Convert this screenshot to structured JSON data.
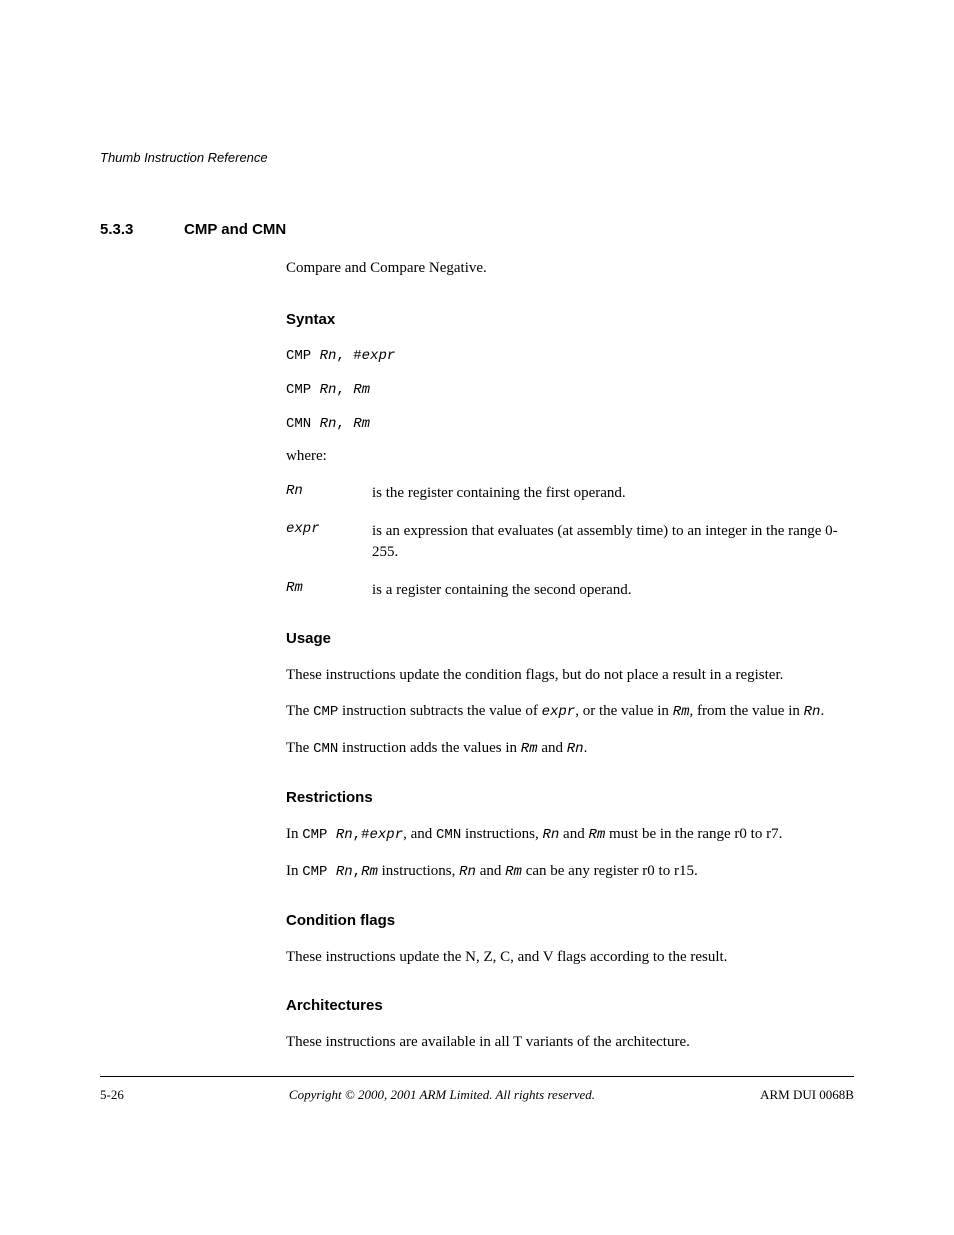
{
  "header": "Thumb Instruction Reference",
  "section": {
    "number": "5.3.3",
    "title": "CMP and CMN"
  },
  "intro": "Compare and Compare Negative.",
  "syntax": {
    "heading": "Syntax",
    "lines": [
      {
        "op": "CMP ",
        "args_html": "<span class=\"mono-italic\">Rn</span><span class=\"mono\">, #</span><span class=\"mono-italic\">expr</span>"
      },
      {
        "op": "CMP ",
        "args_html": "<span class=\"mono-italic\">Rn</span><span class=\"mono\">, </span><span class=\"mono-italic\">Rm</span>"
      },
      {
        "op": "CMN ",
        "args_html": "<span class=\"mono-italic\">Rn</span><span class=\"mono\">, </span><span class=\"mono-italic\">Rm</span>"
      }
    ],
    "where": "where:",
    "defs": [
      {
        "term": "Rn",
        "desc": "is the register containing the first operand."
      },
      {
        "term": "expr",
        "desc": "is an expression that evaluates (at assembly time) to an integer in the range 0-255."
      },
      {
        "term": "Rm",
        "desc": "is a register containing the second operand."
      }
    ]
  },
  "usage": {
    "heading": "Usage",
    "p1": "These instructions update the condition flags, but do not place a result in a register.",
    "p2_pre": "The ",
    "p2_cmp": "CMP",
    "p2_mid1": " instruction subtracts the value of ",
    "p2_expr": "expr",
    "p2_mid2": ", or the value in ",
    "p2_rm": "Rm",
    "p2_mid3": ", from the value in ",
    "p2_rn": "Rn",
    "p2_end": ".",
    "p3_pre": "The ",
    "p3_cmn": "CMN",
    "p3_mid1": " instruction adds the values in ",
    "p3_rm": "Rm",
    "p3_mid2": " and ",
    "p3_rn": "Rn",
    "p3_end": "."
  },
  "restrictions": {
    "heading": "Restrictions",
    "p1_pre": "In ",
    "p1_cmp": "CMP ",
    "p1_rn": "Rn",
    "p1_comma": ",",
    "p1_hash": "#",
    "p1_expr": "expr",
    "p1_mid1": ", and ",
    "p1_cmn": "CMN",
    "p1_mid2": " instructions, ",
    "p1_rn2": "Rn",
    "p1_mid3": " and ",
    "p1_rm": "Rm",
    "p1_end": " must be in the range r0 to r7.",
    "p2_pre": "In ",
    "p2_cmp": "CMP ",
    "p2_rn": "Rn",
    "p2_comma": ",",
    "p2_rm": "Rm",
    "p2_mid1": " instructions, ",
    "p2_rn2": "Rn",
    "p2_mid2": " and ",
    "p2_rm2": "Rm",
    "p2_end": " can be any register r0 to r15."
  },
  "condflags": {
    "heading": "Condition flags",
    "p1": "These instructions update the N, Z, C, and V flags according to the result."
  },
  "arch": {
    "heading": "Architectures",
    "p1": "These instructions are available in all T variants of the architecture."
  },
  "footer": {
    "left": "5-26",
    "center": "Copyright © 2000, 2001 ARM Limited. All rights reserved.",
    "right": "ARM DUI 0068B"
  }
}
